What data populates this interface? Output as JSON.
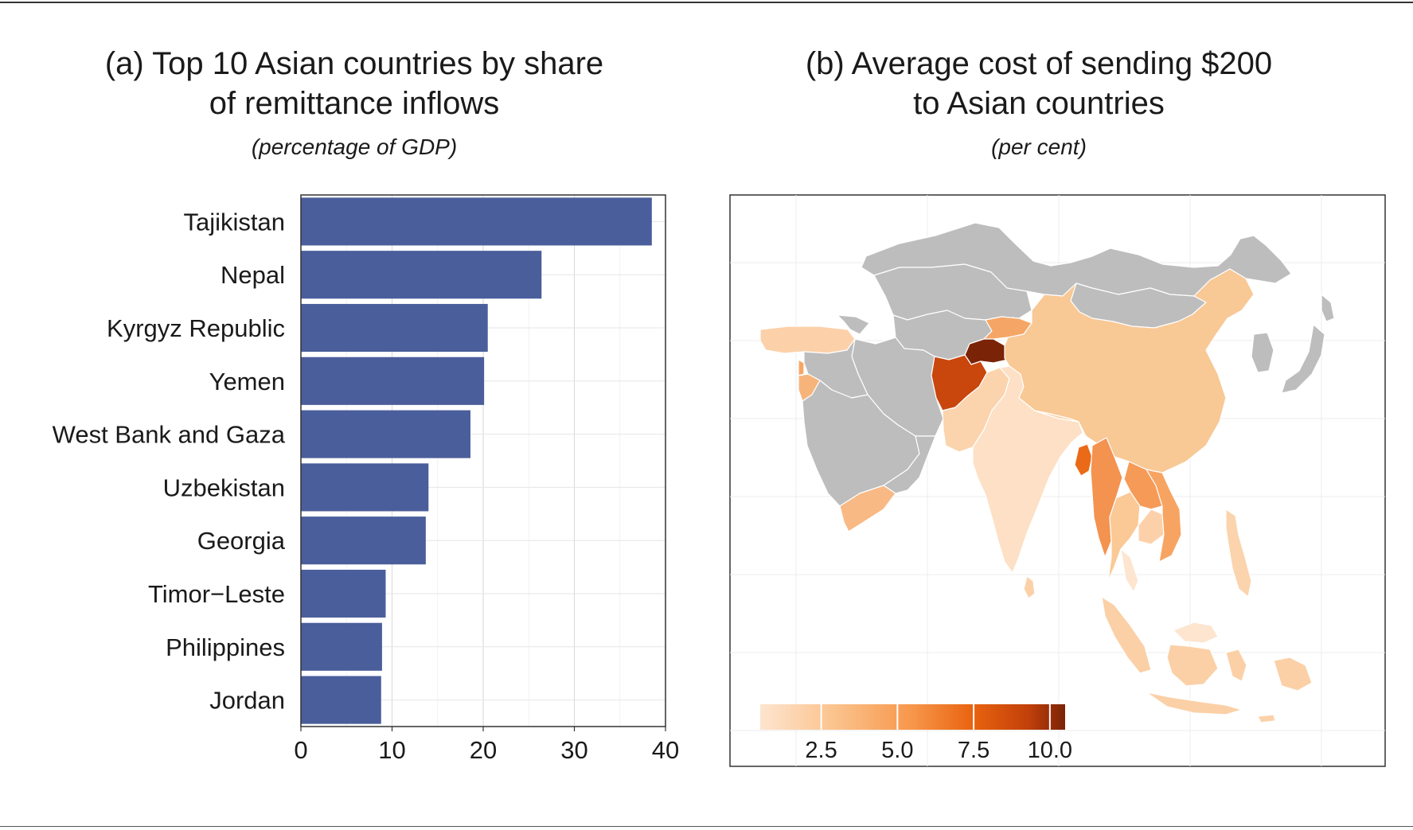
{
  "chart_data": [
    {
      "type": "bar",
      "orientation": "horizontal",
      "title": "(a) Top 10 Asian countries by share of remittance inflows",
      "title_line1": "(a) Top 10 Asian countries by share",
      "title_line2": "of remittance inflows",
      "subtitle": "(percentage of GDP)",
      "categories": [
        "Tajikistan",
        "Nepal",
        "Kyrgyz Republic",
        "Yemen",
        "West Bank and Gaza",
        "Uzbekistan",
        "Georgia",
        "Timor−Leste",
        "Philippines",
        "Jordan"
      ],
      "values": [
        38.5,
        26.4,
        20.5,
        20.1,
        18.6,
        14.0,
        13.7,
        9.3,
        8.9,
        8.8
      ],
      "xlim": [
        0,
        40
      ],
      "xticks": [
        "0",
        "10",
        "20",
        "30",
        "40"
      ],
      "xlabel": "",
      "ylabel": "",
      "bar_color": "#4a5e9b",
      "grid": true
    },
    {
      "type": "choropleth",
      "title": "(b) Average cost of sending $200 to Asian countries",
      "title_line1": "(b) Average cost of sending $200",
      "title_line2": "to Asian countries",
      "subtitle": "(per cent)",
      "legend": {
        "position": "bottom-left",
        "range": [
          0.5,
          10.5
        ],
        "ticks": [
          2.5,
          5.0,
          7.5,
          10.0
        ],
        "tick_labels": [
          "2.5",
          "5.0",
          "7.5",
          "10.0"
        ],
        "colors": [
          "#fde5cf",
          "#fbc28b",
          "#f7964a",
          "#e8620f",
          "#c2400a",
          "#7a2306"
        ]
      },
      "no_data_color": "#bdbdbd",
      "regions": [
        {
          "name": "Afghanistan",
          "value": 8.5
        },
        {
          "name": "Tajikistan",
          "value": 10.4
        },
        {
          "name": "Kyrgyz Republic",
          "value": 6.5
        },
        {
          "name": "Bangladesh",
          "value": 7.0
        },
        {
          "name": "Myanmar",
          "value": 6.0
        },
        {
          "name": "Viet Nam",
          "value": 5.5
        },
        {
          "name": "Laos",
          "value": 5.0
        },
        {
          "name": "Thailand",
          "value": 4.0
        },
        {
          "name": "China",
          "value": 3.9
        },
        {
          "name": "Mongolia",
          "value": null
        },
        {
          "name": "Kazakhstan",
          "value": null
        },
        {
          "name": "Russia",
          "value": null
        },
        {
          "name": "India",
          "value": 2.2
        },
        {
          "name": "Pakistan",
          "value": 3.0
        },
        {
          "name": "Sri Lanka",
          "value": 3.5
        },
        {
          "name": "Nepal",
          "value": 3.3
        },
        {
          "name": "Turkey",
          "value": 3.2
        },
        {
          "name": "Lebanon",
          "value": 4.8
        },
        {
          "name": "Jordan",
          "value": 4.5
        },
        {
          "name": "Yemen",
          "value": 4.2
        },
        {
          "name": "Iran",
          "value": null
        },
        {
          "name": "Iraq",
          "value": null
        },
        {
          "name": "Saudi Arabia",
          "value": null
        },
        {
          "name": "Uzbekistan",
          "value": null
        },
        {
          "name": "Turkmenistan",
          "value": null
        },
        {
          "name": "Philippines",
          "value": 3.2
        },
        {
          "name": "Indonesia",
          "value": 3.6
        },
        {
          "name": "Malaysia",
          "value": 2.0
        },
        {
          "name": "Cambodia",
          "value": 3.0
        },
        {
          "name": "Japan",
          "value": null
        },
        {
          "name": "Korea",
          "value": null
        },
        {
          "name": "Timor−Leste",
          "value": 3.4
        }
      ]
    }
  ]
}
